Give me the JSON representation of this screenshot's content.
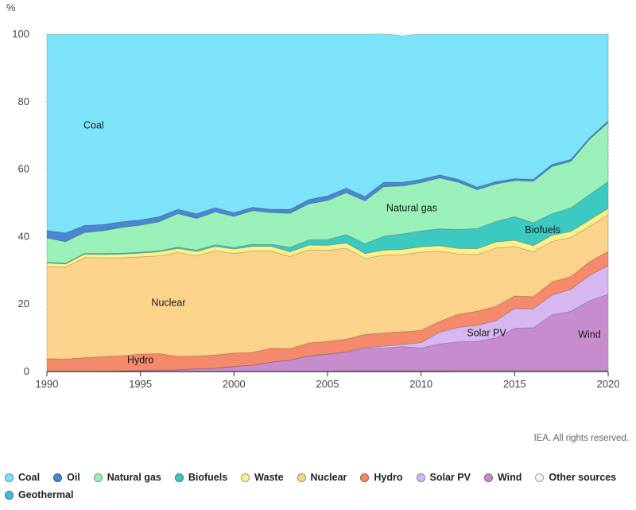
{
  "chart_data": {
    "type": "area",
    "stacked": true,
    "ylabel": "%",
    "ylim": [
      0,
      100
    ],
    "xlim": [
      1990,
      2020
    ],
    "yticks": [
      "0",
      "20",
      "40",
      "60",
      "80",
      "100"
    ],
    "xticks": [
      "1990",
      "1995",
      "2000",
      "2005",
      "2010",
      "2015",
      "2020"
    ],
    "grid": true,
    "legend_position": "bottom",
    "x": [
      1990,
      1991,
      1992,
      1993,
      1994,
      1995,
      1996,
      1997,
      1998,
      1999,
      2000,
      2001,
      2002,
      2003,
      2004,
      2005,
      2006,
      2007,
      2008,
      2009,
      2010,
      2011,
      2012,
      2013,
      2014,
      2015,
      2016,
      2017,
      2018,
      2019,
      2020
    ],
    "series": [
      {
        "name": "Other sources",
        "color": "#f4f4f4",
        "values": [
          0,
          0,
          0,
          0,
          0,
          0,
          0,
          0,
          0,
          0,
          0,
          0,
          0,
          0.1,
          0.1,
          0.1,
          0.2,
          0.2,
          0.2,
          0.2,
          0.2,
          0.2,
          0.3,
          0.3,
          0.3,
          0.3,
          0.3,
          0.3,
          0.3,
          0.3,
          0.3
        ]
      },
      {
        "name": "Geothermal",
        "color": "#3fbfdc",
        "values": [
          0,
          0,
          0,
          0,
          0,
          0,
          0,
          0,
          0,
          0,
          0,
          0,
          0,
          0,
          0,
          0,
          0,
          0,
          0,
          0,
          0,
          0,
          0,
          0,
          0,
          0,
          0,
          0,
          0,
          0,
          0
        ]
      },
      {
        "name": "Wind",
        "color": "#c78ccd",
        "values": [
          0,
          0,
          0,
          0.1,
          0.2,
          0.3,
          0.4,
          0.5,
          0.8,
          1.0,
          1.5,
          1.9,
          2.8,
          3.3,
          4.5,
          5.0,
          5.5,
          6.6,
          6.8,
          7.2,
          6.8,
          8.0,
          8.5,
          8.6,
          9.7,
          12.5,
          12.7,
          16.5,
          17.5,
          20.7,
          22.6
        ]
      },
      {
        "name": "Solar PV",
        "color": "#d6b7f0",
        "values": [
          0,
          0,
          0,
          0,
          0,
          0,
          0,
          0,
          0,
          0,
          0,
          0,
          0,
          0,
          0.1,
          0.1,
          0.2,
          0.3,
          0.5,
          0.6,
          1.6,
          3.5,
          4.3,
          4.8,
          5.1,
          5.9,
          5.6,
          5.9,
          6.5,
          7.5,
          8.5
        ]
      },
      {
        "name": "Hydro",
        "color": "#f4896b",
        "values": [
          3.8,
          3.7,
          4.1,
          4.3,
          4.5,
          4.9,
          4.9,
          4.0,
          3.8,
          3.9,
          4.0,
          3.8,
          4.1,
          3.4,
          3.8,
          3.7,
          3.7,
          3.9,
          3.9,
          3.8,
          3.6,
          3.2,
          3.9,
          4.2,
          4.2,
          3.7,
          3.6,
          3.9,
          3.8,
          4.0,
          4.2
        ]
      },
      {
        "name": "Nuclear",
        "color": "#fbd38a",
        "values": [
          27.4,
          27.2,
          29.7,
          29.3,
          29.0,
          28.8,
          29.0,
          30.8,
          29.7,
          30.9,
          29.5,
          30.0,
          28.8,
          27.3,
          27.6,
          27.0,
          27.0,
          22.5,
          23.1,
          22.8,
          23.2,
          20.8,
          17.8,
          16.8,
          17.3,
          14.7,
          13.3,
          12.0,
          11.6,
          10.5,
          10.9
        ]
      },
      {
        "name": "Waste",
        "color": "#fdf08c",
        "values": [
          1.0,
          1.0,
          1.0,
          1.0,
          1.1,
          1.1,
          1.2,
          1.2,
          1.3,
          1.3,
          1.3,
          1.4,
          1.4,
          1.4,
          1.4,
          1.5,
          1.5,
          1.5,
          1.5,
          1.6,
          1.6,
          1.6,
          1.7,
          1.7,
          1.8,
          1.8,
          1.8,
          1.8,
          1.8,
          1.9,
          1.9
        ]
      },
      {
        "name": "Biofuels",
        "color": "#3cc9c1",
        "values": [
          0.2,
          0.2,
          0.2,
          0.3,
          0.3,
          0.3,
          0.3,
          0.4,
          0.4,
          0.5,
          0.5,
          0.6,
          0.6,
          1.3,
          1.5,
          1.7,
          2.5,
          2.9,
          4.1,
          4.6,
          4.7,
          5.0,
          5.6,
          6.0,
          6.1,
          7.0,
          6.8,
          6.4,
          7.0,
          7.5,
          7.9
        ]
      },
      {
        "name": "Natural gas",
        "color": "#99f0b9",
        "values": [
          7.2,
          6.4,
          6.2,
          6.7,
          7.6,
          8.0,
          8.6,
          9.9,
          9.4,
          9.7,
          9.2,
          10.0,
          9.4,
          10.1,
          10.7,
          11.6,
          12.4,
          12.7,
          14.7,
          14.2,
          14.3,
          15.1,
          14.0,
          11.5,
          11.1,
          10.7,
          12.3,
          14.0,
          13.8,
          16.4,
          17.5
        ]
      },
      {
        "name": "Oil",
        "color": "#4a86d1",
        "values": [
          2.2,
          2.6,
          2.1,
          1.9,
          1.7,
          1.6,
          1.5,
          1.3,
          1.4,
          1.3,
          1.1,
          1.0,
          1.0,
          1.2,
          1.3,
          1.4,
          1.4,
          1.3,
          1.3,
          1.1,
          1.0,
          0.9,
          0.9,
          0.8,
          0.7,
          0.6,
          0.6,
          0.6,
          0.6,
          0.5,
          0.5
        ]
      },
      {
        "name": "Coal",
        "color": "#7de3f8",
        "values": [
          58.2,
          58.9,
          56.7,
          56.4,
          55.6,
          55.0,
          54.1,
          51.9,
          53.2,
          51.4,
          52.9,
          51.3,
          51.9,
          51.9,
          49.0,
          47.9,
          45.6,
          48.1,
          44.0,
          43.4,
          43.0,
          41.7,
          43.0,
          45.3,
          43.7,
          42.8,
          43.0,
          38.6,
          37.1,
          30.7,
          25.7
        ]
      }
    ],
    "annotations": [
      {
        "text": "Coal",
        "x": 1992.5,
        "y": 72
      },
      {
        "text": "Natural gas",
        "x": 2009.5,
        "y": 47.5
      },
      {
        "text": "Biofuels",
        "x": 2016.5,
        "y": 41
      },
      {
        "text": "Nuclear",
        "x": 1996.5,
        "y": 19.5
      },
      {
        "text": "Hydro",
        "x": 1995,
        "y": 2.5
      },
      {
        "text": "Solar PV",
        "x": 2013.5,
        "y": 10.5
      },
      {
        "text": "Wind",
        "x": 2019,
        "y": 10
      }
    ]
  },
  "credit": "IEA. All rights reserved.",
  "legend": [
    {
      "name": "Coal",
      "color": "#7de3f8"
    },
    {
      "name": "Oil",
      "color": "#4a86d1"
    },
    {
      "name": "Natural gas",
      "color": "#99f0b9"
    },
    {
      "name": "Biofuels",
      "color": "#3cc9c1"
    },
    {
      "name": "Waste",
      "color": "#fdf08c"
    },
    {
      "name": "Nuclear",
      "color": "#fbd38a"
    },
    {
      "name": "Hydro",
      "color": "#f4896b"
    },
    {
      "name": "Solar PV",
      "color": "#d6b7f0"
    },
    {
      "name": "Wind",
      "color": "#c78ccd"
    },
    {
      "name": "Other sources",
      "color": "#f4f4f4"
    },
    {
      "name": "Geothermal",
      "color": "#3fbfdc"
    }
  ]
}
